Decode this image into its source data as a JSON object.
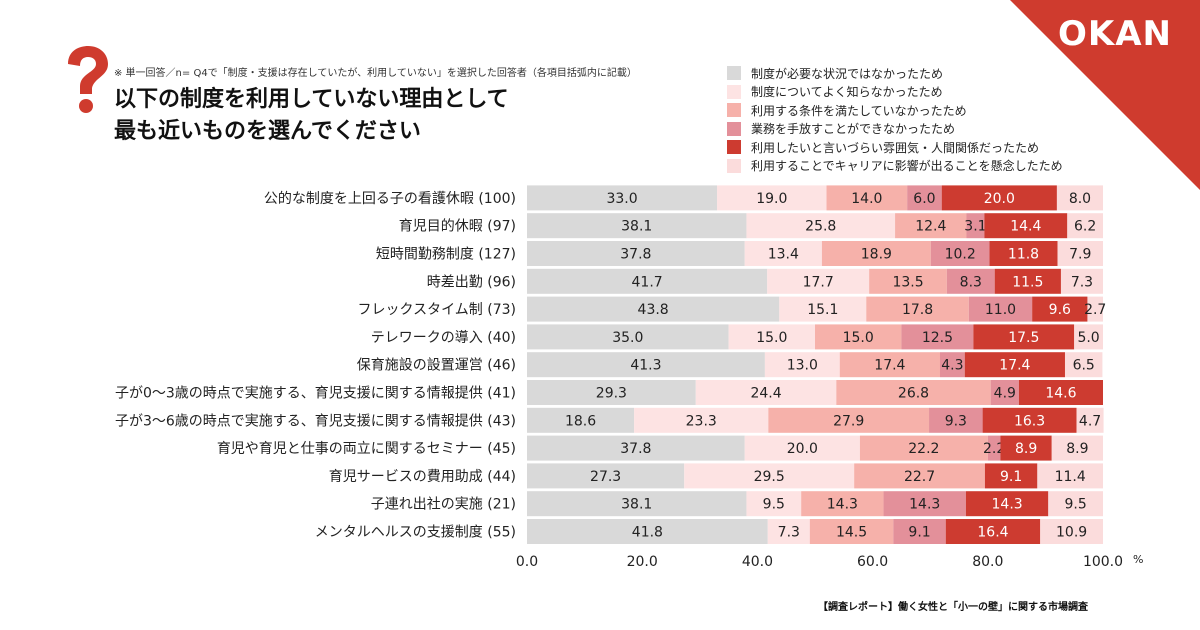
{
  "brand": {
    "logo": "OKAN"
  },
  "header": {
    "note": "※ 単一回答／n= Q4で「制度・支援は存在していたが、利用していない」を選択した回答者（各項目括弧内に記載）",
    "title_line1": "以下の制度を利用していない理由として",
    "title_line2": "最も近いものを選んでください"
  },
  "footer": {
    "text": "【調査レポート】働く女性と「小一の壁」に関する市場調査"
  },
  "chart_data": {
    "type": "bar",
    "orientation": "horizontal",
    "stacked": true,
    "unit": "%",
    "xlim": [
      0,
      100
    ],
    "x_ticks": [
      "0.0",
      "20.0",
      "40.0",
      "60.0",
      "80.0",
      "100.0"
    ],
    "legend_position": "top-right",
    "categories": [
      "公的な制度を上回る子の看護休暇 (100)",
      "育児目的休暇 (97)",
      "短時間勤務制度 (127)",
      "時差出勤 (96)",
      "フレックスタイム制 (73)",
      "テレワークの導入 (40)",
      "保育施設の設置運営 (46)",
      "子が0～3歳の時点で実施する、育児支援に関する情報提供 (41)",
      "子が3～6歳の時点で実施する、育児支援に関する情報提供 (43)",
      "育児や育児と仕事の両立に関するセミナー (45)",
      "育児サービスの費用助成 (44)",
      "子連れ出社の実施 (21)",
      "メンタルヘルスの支援制度 (55)"
    ],
    "series": [
      {
        "name": "制度が必要な状況ではなかったため",
        "color": "#d9d9d9",
        "text_color": "#222222",
        "values": [
          33.0,
          38.1,
          37.8,
          41.7,
          43.8,
          35.0,
          41.3,
          29.3,
          18.6,
          37.8,
          27.3,
          38.1,
          41.8
        ]
      },
      {
        "name": "制度についてよく知らなかったため",
        "color": "#fde3e3",
        "text_color": "#222222",
        "values": [
          19.0,
          25.8,
          13.4,
          17.7,
          15.1,
          15.0,
          13.0,
          24.4,
          23.3,
          20.0,
          29.5,
          9.5,
          7.3
        ]
      },
      {
        "name": "利用する条件を満たしていなかったため",
        "color": "#f6b1aa",
        "text_color": "#222222",
        "values": [
          14.0,
          12.4,
          18.9,
          13.5,
          17.8,
          15.0,
          17.4,
          26.8,
          27.9,
          22.2,
          22.7,
          14.3,
          14.5
        ]
      },
      {
        "name": "業務を手放すことができなかったため",
        "color": "#e3909a",
        "text_color": "#222222",
        "values": [
          6.0,
          3.1,
          10.2,
          8.3,
          11.0,
          12.5,
          4.3,
          4.9,
          9.3,
          2.2,
          0,
          14.3,
          9.1
        ]
      },
      {
        "name": "利用したいと言いづらい雰囲気・人間関係だったため",
        "color": "#cd3b30",
        "text_color": "#ffffff",
        "values": [
          20.0,
          14.4,
          11.8,
          11.5,
          9.6,
          17.5,
          17.4,
          14.6,
          16.3,
          8.9,
          9.1,
          14.3,
          16.4
        ]
      },
      {
        "name": "利用することでキャリアに影響が出ることを懸念したため",
        "color": "#fbdcdc",
        "text_color": "#222222",
        "values": [
          8.0,
          6.2,
          7.9,
          7.3,
          2.7,
          5.0,
          6.5,
          0,
          4.7,
          8.9,
          11.4,
          9.5,
          10.9
        ]
      }
    ]
  }
}
